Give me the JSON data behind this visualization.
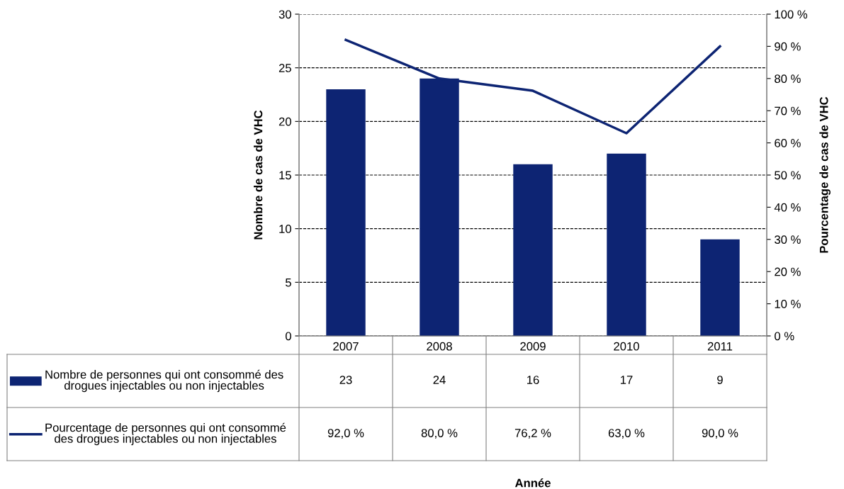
{
  "chart_data": {
    "type": "bar",
    "annotations": [
      "Année"
    ],
    "ylabel": "Nombre de cas de VHC",
    "y2label": "Pourcentage de cas de VHC",
    "categories": [
      "2007",
      "2008",
      "2009",
      "2010",
      "2011"
    ],
    "series": [
      {
        "name": "Nombre de personnes qui ont consommé des drogues injectables ou non injectables",
        "color": "#0d2473",
        "values": [
          23,
          24,
          16,
          17,
          9
        ],
        "value_labels": [
          "23",
          "24",
          "16",
          "17",
          "9"
        ]
      },
      {
        "name": "Pourcentage de personnes qui ont consommé des drogues injectables ou non injectables",
        "type": "line",
        "axis": "y2",
        "color": "#0d2473",
        "values": [
          92.0,
          80.0,
          76.2,
          63.0,
          90.0
        ],
        "value_labels": [
          "92,0 %",
          "80,0 %",
          "76,2 %",
          "63,0 %",
          "90,0 %"
        ]
      }
    ],
    "ylim": [
      0,
      30
    ],
    "yticks": [
      0,
      5,
      10,
      15,
      20,
      25,
      30
    ],
    "y2lim": [
      0,
      100
    ],
    "y2ticks": [
      {
        "value": 0,
        "label": "0 %"
      },
      {
        "value": 10,
        "label": "10 %"
      },
      {
        "value": 20,
        "label": "20 %"
      },
      {
        "value": 30,
        "label": "30 %"
      },
      {
        "value": 40,
        "label": "40 %"
      },
      {
        "value": 50,
        "label": "50 %"
      },
      {
        "value": 60,
        "label": "60 %"
      },
      {
        "value": 70,
        "label": "70 %"
      },
      {
        "value": 80,
        "label": "80 %"
      },
      {
        "value": 90,
        "label": "90 %"
      },
      {
        "value": 100,
        "label": "100 %"
      }
    ],
    "grid": "y",
    "legend": "bottom",
    "marker": "none",
    "line_style": "solid"
  }
}
